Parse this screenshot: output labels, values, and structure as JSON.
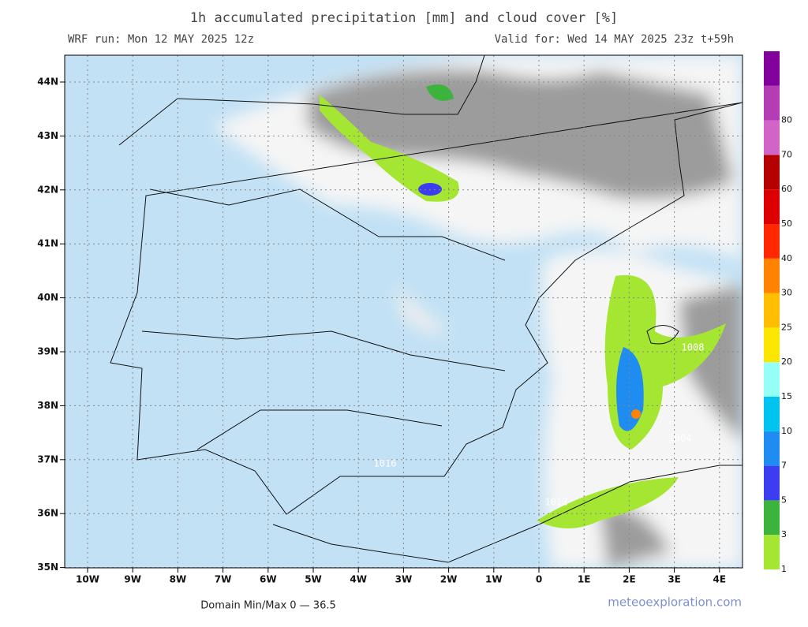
{
  "header": {
    "title": "1h accumulated precipitation [mm] and cloud cover [%]",
    "run": "WRF run: Mon 12 MAY 2025 12z",
    "valid": "Valid for: Wed 14 MAY 2025 23z  t+59h"
  },
  "axes": {
    "lon_labels": [
      "10W",
      "9W",
      "8W",
      "7W",
      "6W",
      "5W",
      "4W",
      "3W",
      "2W",
      "1W",
      "0",
      "1E",
      "2E",
      "3E",
      "4E"
    ],
    "lat_labels": [
      "44N",
      "43N",
      "42N",
      "41N",
      "40N",
      "39N",
      "38N",
      "37N",
      "36N",
      "35N"
    ]
  },
  "legend": {
    "labels": [
      1,
      3,
      5,
      7,
      10,
      15,
      20,
      25,
      30,
      40,
      50,
      60,
      70,
      80
    ],
    "colors": [
      "#a5e632",
      "#3cb43c",
      "#3c3cf0",
      "#1e8cf0",
      "#00c3f0",
      "#96fff5",
      "#fae600",
      "#ffbe00",
      "#ff8200",
      "#ff2800",
      "#dc0000",
      "#b40000",
      "#d264c8",
      "#b43cb4",
      "#82009b"
    ]
  },
  "isobars": [
    "1012",
    "1008",
    "1004",
    "1016"
  ],
  "footer": {
    "domain": "Domain Min/Max 0 — 36.5",
    "credit": "meteoexploration.com"
  }
}
